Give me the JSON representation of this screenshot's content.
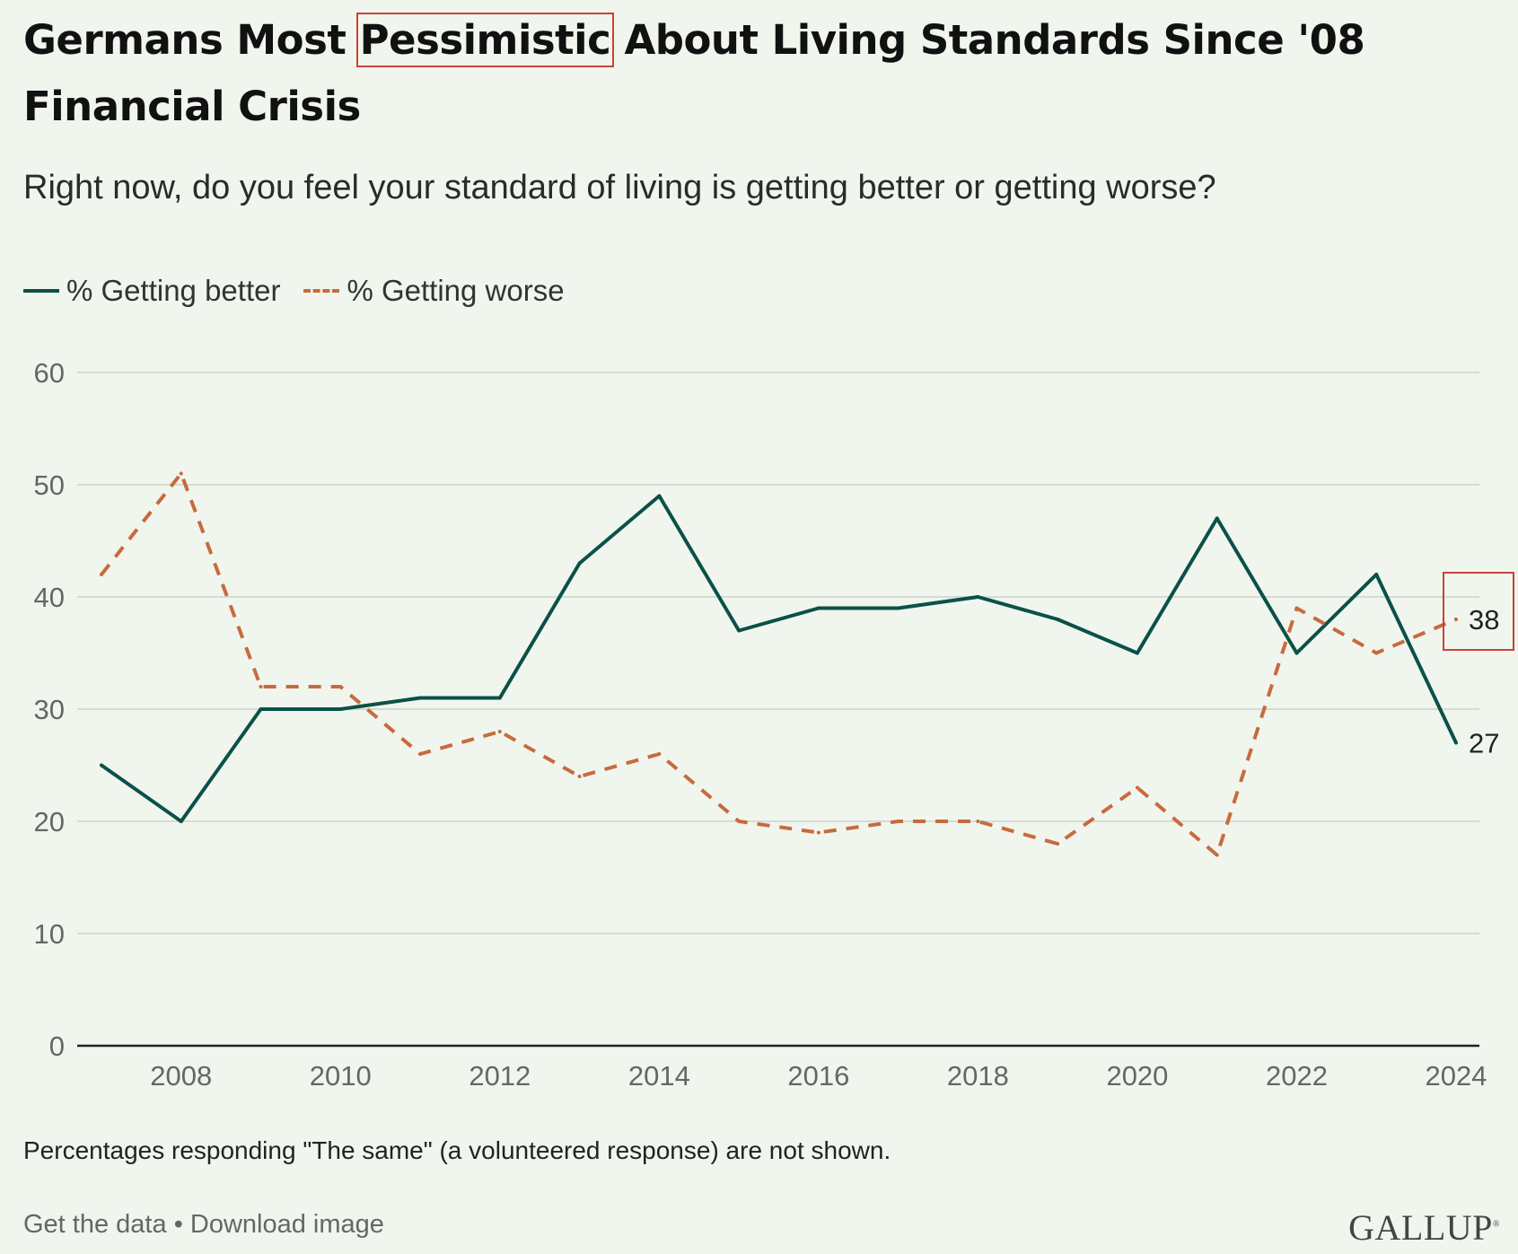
{
  "header": {
    "title_pre": "Germans Most ",
    "title_highlight": "Pessimistic",
    "title_post": " About Living Standards Since '08 Financial Crisis",
    "subtitle": "Right now, do you feel your standard of living is getting better or getting worse?"
  },
  "legend": {
    "better": "% Getting better",
    "worse": "% Getting worse"
  },
  "colors": {
    "better": "#0b5147",
    "worse": "#c86a3e",
    "highlight": "#c8423a",
    "grid": "#d5dcd3",
    "axis": "#222222",
    "tick": "#666666"
  },
  "chart_data": {
    "type": "line",
    "title": "Germans Most Pessimistic About Living Standards Since '08 Financial Crisis",
    "xlabel": "",
    "ylabel": "",
    "ylim": [
      0,
      60
    ],
    "yticks": [
      0,
      10,
      20,
      30,
      40,
      50,
      60
    ],
    "xlim": [
      2007,
      2024
    ],
    "xticks": [
      2008,
      2010,
      2012,
      2014,
      2016,
      2018,
      2020,
      2022,
      2024
    ],
    "x": [
      2007,
      2008,
      2009,
      2010,
      2011,
      2012,
      2013,
      2014,
      2015,
      2016,
      2017,
      2018,
      2019,
      2020,
      2021,
      2022,
      2023,
      2024
    ],
    "series": [
      {
        "key": "better",
        "name": "% Getting better",
        "style": "solid",
        "values": [
          25,
          20,
          30,
          30,
          31,
          31,
          43,
          49,
          37,
          39,
          39,
          40,
          38,
          35,
          47,
          35,
          42,
          27
        ],
        "end_label": "27"
      },
      {
        "key": "worse",
        "name": "% Getting worse",
        "style": "dashed",
        "values": [
          42,
          51,
          32,
          32,
          26,
          28,
          24,
          26,
          20,
          19,
          20,
          20,
          18,
          23,
          17,
          39,
          35,
          38
        ],
        "end_label": "38",
        "end_label_highlighted": true
      }
    ]
  },
  "footnote": "Percentages responding \"The same\" (a volunteered response) are not shown.",
  "links": {
    "get_data": "Get the data",
    "separator": "•",
    "download": "Download image"
  },
  "brand": "GALLUP"
}
